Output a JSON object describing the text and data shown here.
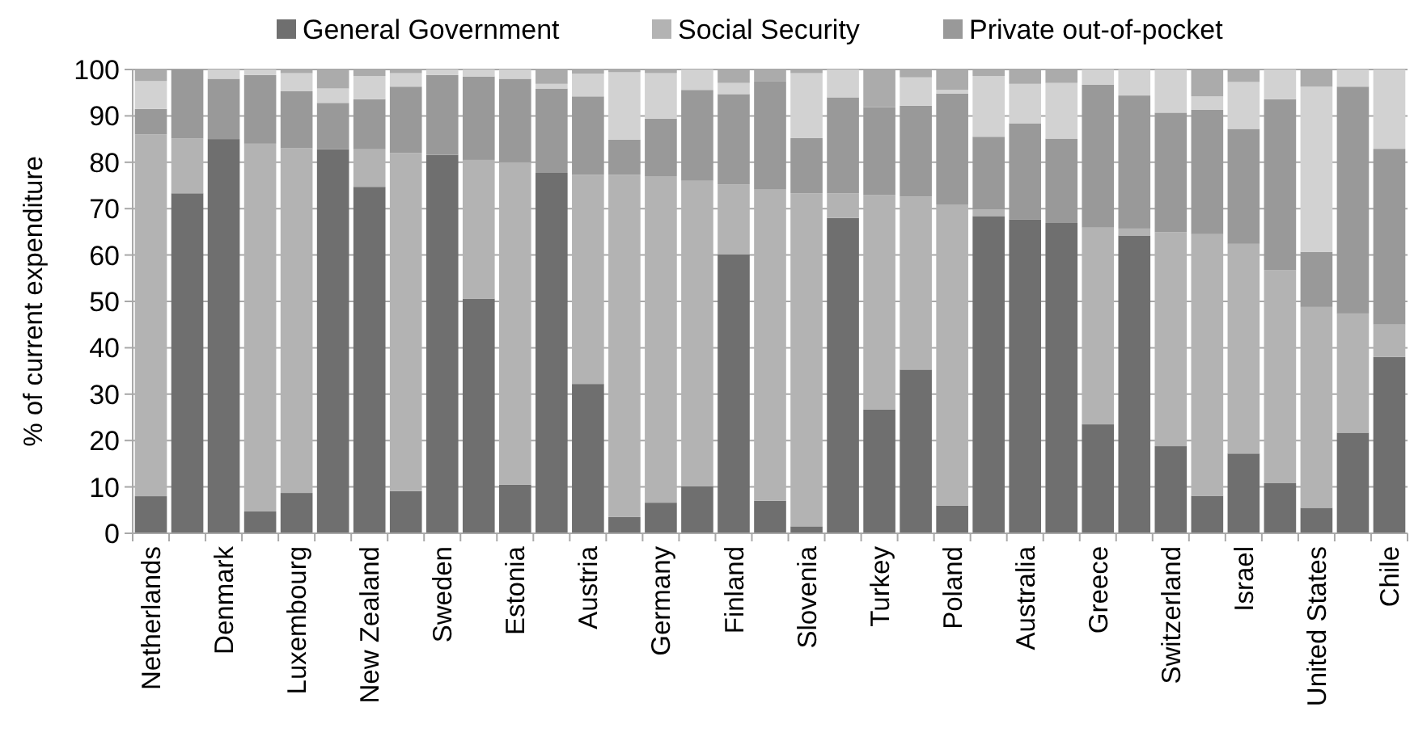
{
  "chart_data": {
    "type": "bar",
    "stacked": true,
    "ylabel": "% of current expenditure",
    "legend": "top",
    "grid": "y",
    "categories": [
      "Netherlands",
      null,
      "Denmark",
      null,
      "Luxembourg",
      null,
      "New Zealand",
      null,
      "Sweden",
      null,
      "Estonia",
      null,
      "Austria",
      null,
      "Germany",
      null,
      "Finland",
      null,
      "Slovenia",
      null,
      "Turkey",
      null,
      "Poland",
      null,
      "Australia",
      null,
      "Greece",
      null,
      "Switzerland",
      null,
      "Israel",
      null,
      "United States",
      null,
      "Chile"
    ],
    "ylim": [
      0,
      100
    ],
    "yticks": [
      0,
      10,
      20,
      30,
      40,
      50,
      60,
      70,
      80,
      90,
      100
    ],
    "series": [
      {
        "name": "General Government",
        "color": "#6f6f6f",
        "values": [
          8,
          73.3,
          85,
          4.7,
          8.7,
          82.8,
          74.7,
          9.1,
          81.6,
          50.6,
          10.5,
          77.7,
          32.2,
          3.5,
          6.6,
          10.1,
          60.1,
          7,
          1.5,
          68,
          26.7,
          35.3,
          6,
          68.4,
          67.7,
          66.9,
          23.5,
          64.2,
          18.8,
          8.1,
          17.2,
          10.8,
          5.5,
          21.7,
          38
        ]
      },
      {
        "name": "Social Security",
        "color": "#b3b3b3",
        "values": [
          78,
          11.8,
          0,
          79.3,
          74.3,
          0,
          8.1,
          72.9,
          0,
          29.9,
          69.5,
          0,
          45.1,
          73.8,
          70.4,
          65.9,
          15.1,
          67.1,
          71.8,
          5.3,
          46.2,
          37.3,
          64.9,
          1.4,
          0,
          0,
          42.4,
          1.5,
          46.1,
          56.4,
          45.2,
          45.9,
          43.3,
          25.7,
          7
        ]
      },
      {
        "name": "Private out-of-pocket",
        "color": "#999999",
        "values": [
          5.5,
          14.9,
          13,
          14.8,
          12.3,
          10,
          10.8,
          14.3,
          17.2,
          18,
          18,
          18.2,
          16.9,
          7.6,
          12.4,
          19.6,
          19.5,
          23.3,
          11.9,
          20.7,
          19,
          19.6,
          23.9,
          15.7,
          20.7,
          18.2,
          30.8,
          28.7,
          25.8,
          26.8,
          24.8,
          36.9,
          11.9,
          48.9,
          37.9
        ]
      },
      {
        "color": "#d2d2d2",
        "values": [
          6,
          0,
          2,
          1.2,
          3.9,
          3.1,
          5,
          2.9,
          1.2,
          1.5,
          2,
          1,
          4.9,
          14.5,
          9.8,
          4.4,
          2.4,
          0,
          14,
          6,
          0,
          6.1,
          0.8,
          13.1,
          8.5,
          12,
          3.3,
          5.6,
          9.3,
          2.9,
          10.1,
          6.4,
          35.6,
          3.7,
          17.1
        ]
      },
      {
        "color": "#ababab",
        "values": [
          2.5,
          0,
          0,
          0,
          0.8,
          4.1,
          1.4,
          0.8,
          0,
          0,
          0,
          3.1,
          0.9,
          0.6,
          0.8,
          0,
          2.9,
          2.6,
          0.8,
          0,
          8.1,
          1.7,
          4.4,
          1.4,
          3.1,
          2.9,
          0,
          0,
          0,
          5.8,
          2.7,
          0,
          3.7,
          0,
          0
        ]
      }
    ]
  }
}
